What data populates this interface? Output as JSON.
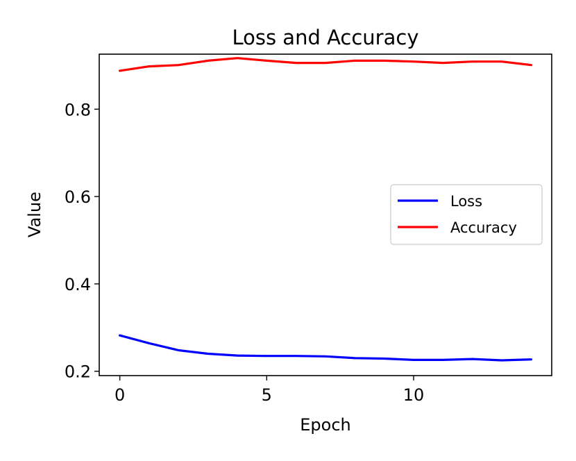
{
  "chart_data": {
    "type": "line",
    "title": "Loss and Accuracy",
    "xlabel": "Epoch",
    "ylabel": "Value",
    "xlim": [
      -0.7,
      14.7
    ],
    "ylim": [
      0.19,
      0.926
    ],
    "xticks": [
      0,
      5,
      10
    ],
    "xtick_labels": [
      "0",
      "5",
      "10"
    ],
    "yticks": [
      0.2,
      0.4,
      0.6,
      0.8
    ],
    "ytick_labels": [
      "0.2",
      "0.4",
      "0.6",
      "0.8"
    ],
    "grid": false,
    "legend_position": "center-right",
    "x": [
      0,
      1,
      2,
      3,
      4,
      5,
      6,
      7,
      8,
      9,
      10,
      11,
      12,
      13,
      14
    ],
    "series": [
      {
        "name": "Loss",
        "color": "#0000ff",
        "values": [
          0.282,
          0.264,
          0.248,
          0.24,
          0.236,
          0.235,
          0.235,
          0.234,
          0.23,
          0.229,
          0.226,
          0.226,
          0.228,
          0.225,
          0.227
        ]
      },
      {
        "name": "Accuracy",
        "color": "#ff0000",
        "values": [
          0.888,
          0.898,
          0.901,
          0.911,
          0.917,
          0.911,
          0.906,
          0.906,
          0.911,
          0.911,
          0.909,
          0.906,
          0.909,
          0.909,
          0.901
        ]
      }
    ]
  }
}
